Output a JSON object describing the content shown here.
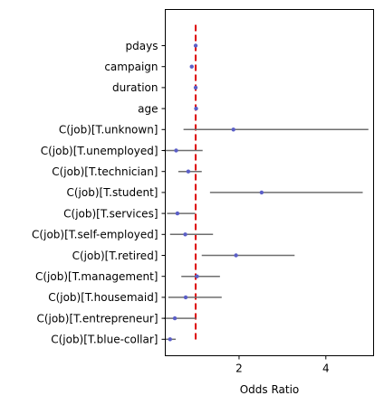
{
  "chart_data": {
    "type": "scatter",
    "title": "",
    "xlabel": "Odds Ratio",
    "ylabel": "",
    "xlim": [
      0.3,
      5.1
    ],
    "xticks": [
      2,
      4
    ],
    "reference_line": {
      "x": 1.0,
      "style": "dashed",
      "color": "#dd0000"
    },
    "categories": [
      "pdays",
      "campaign",
      "duration",
      "age",
      "C(job)[T.unknown]",
      "C(job)[T.unemployed]",
      "C(job)[T.technician]",
      "C(job)[T.student]",
      "C(job)[T.services]",
      "C(job)[T.self-employed]",
      "C(job)[T.retired]",
      "C(job)[T.management]",
      "C(job)[T.housemaid]",
      "C(job)[T.entrepreneur]",
      "C(job)[T.blue-collar]"
    ],
    "odds_ratio": [
      1.0,
      0.91,
      1.0,
      1.01,
      1.87,
      0.55,
      0.83,
      2.52,
      0.58,
      0.76,
      1.93,
      1.03,
      0.77,
      0.52,
      0.41
    ],
    "ci_low": [
      1.0,
      0.89,
      1.0,
      0.99,
      0.72,
      0.26,
      0.6,
      1.33,
      0.34,
      0.41,
      1.14,
      0.67,
      0.37,
      0.27,
      0.31
    ],
    "ci_high": [
      1.0,
      0.95,
      1.0,
      1.03,
      4.98,
      1.16,
      1.14,
      4.85,
      0.99,
      1.4,
      3.28,
      1.56,
      1.6,
      1.01,
      0.54
    ],
    "colors": {
      "point": "#5b5fc7",
      "ci_line": "#6e6e6e",
      "frame": "#000000"
    }
  }
}
